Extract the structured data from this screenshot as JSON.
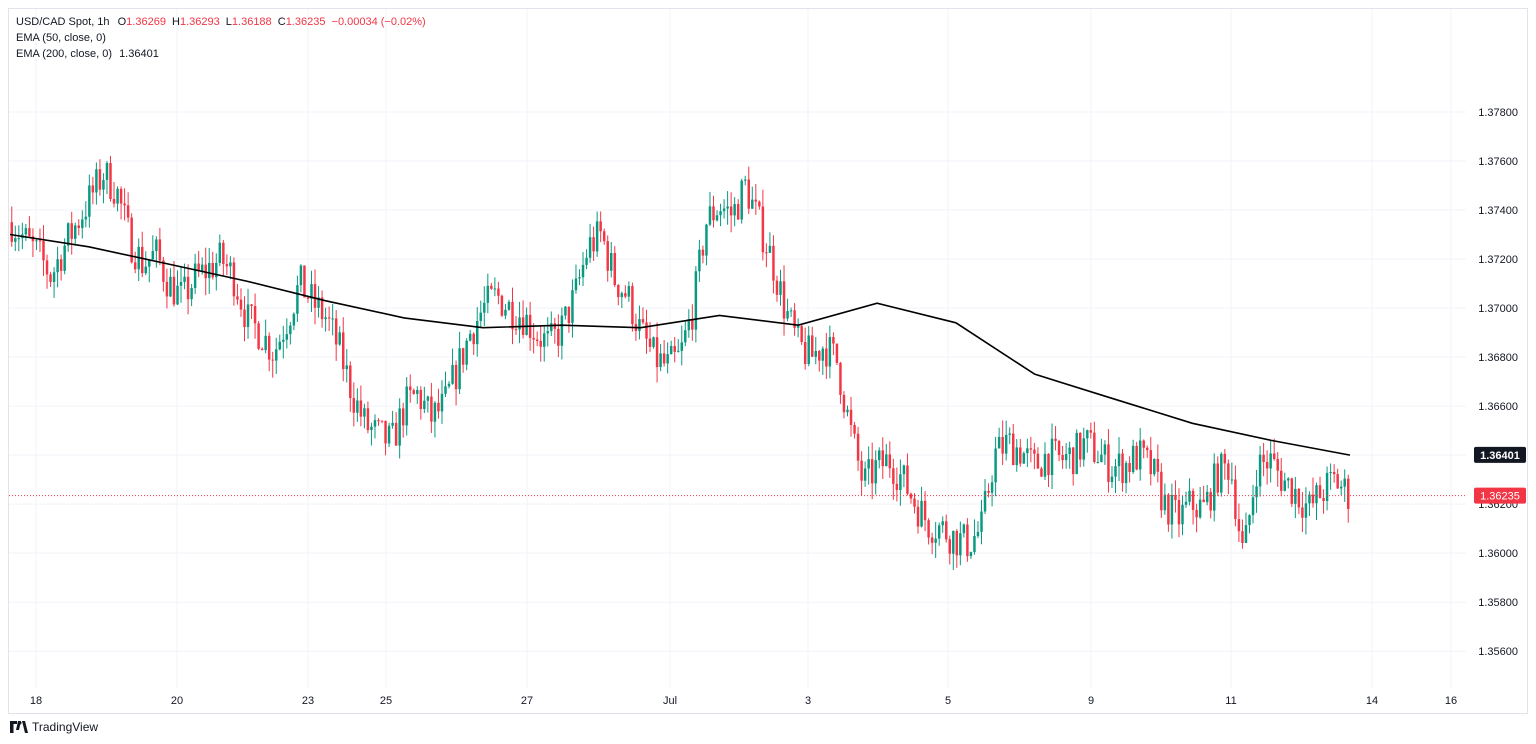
{
  "header": {
    "symbol": "USD/CAD Spot, 1h",
    "o_label": "O",
    "o_value": "1.36269",
    "h_label": "H",
    "h_value": "1.36293",
    "l_label": "L",
    "l_value": "1.36188",
    "c_label": "C",
    "c_value": "1.36235",
    "change": "−0.00034 (−0.02%)",
    "ema50": "EMA (50, close, 0)",
    "ema200": "EMA (200, close, 0)",
    "ema200_value": "1.36401"
  },
  "brand": {
    "name": "TradingView"
  },
  "colors": {
    "up": "#089981",
    "down": "#f23645",
    "ema": "#000000",
    "grid": "#f0f3fa",
    "price_line": "#f23645"
  },
  "chart_data": {
    "type": "candlestick",
    "timeframe": "1h",
    "x_ticks": [
      "18",
      "20",
      "23",
      "25",
      "27",
      "Jul",
      "3",
      "5",
      "9",
      "11",
      "14",
      "16"
    ],
    "y_ticks": [
      "1.35600",
      "1.35800",
      "1.36000",
      "1.36200",
      "1.36400",
      "1.36600",
      "1.36800",
      "1.37000",
      "1.37200",
      "1.37400",
      "1.37600",
      "1.37800"
    ],
    "ylim": [
      1.3545,
      1.3822
    ],
    "last_price": "1.36235",
    "ema200_label": "1.36401",
    "close_path": [
      [
        "18",
        1.3735
      ],
      [
        "18",
        1.3728
      ],
      [
        "18",
        1.3722
      ],
      [
        "18",
        1.3713
      ],
      [
        "18",
        1.3725
      ],
      [
        "18",
        1.3735
      ],
      [
        "18",
        1.3745
      ],
      [
        "18",
        1.3755
      ],
      [
        "18",
        1.3748
      ],
      [
        "18",
        1.3728
      ],
      [
        "20",
        1.3718
      ],
      [
        "20",
        1.3722
      ],
      [
        "20",
        1.371
      ],
      [
        "20",
        1.3704
      ],
      [
        "20",
        1.3712
      ],
      [
        "20",
        1.3716
      ],
      [
        "20",
        1.372
      ],
      [
        "20",
        1.3712
      ],
      [
        "20",
        1.3695
      ],
      [
        "20",
        1.369
      ],
      [
        "23",
        1.3682
      ],
      [
        "23",
        1.3695
      ],
      [
        "23",
        1.371
      ],
      [
        "23",
        1.3702
      ],
      [
        "23",
        1.3696
      ],
      [
        "23",
        1.3683
      ],
      [
        "23",
        1.3665
      ],
      [
        "23",
        1.3652
      ],
      [
        "23",
        1.3648
      ],
      [
        "25",
        1.3645
      ],
      [
        "25",
        1.366
      ],
      [
        "25",
        1.3665
      ],
      [
        "25",
        1.3655
      ],
      [
        "25",
        1.366
      ],
      [
        "25",
        1.3675
      ],
      [
        "25",
        1.369
      ],
      [
        "25",
        1.37
      ],
      [
        "25",
        1.3705
      ],
      [
        "25",
        1.37
      ],
      [
        "27",
        1.3697
      ],
      [
        "27",
        1.369
      ],
      [
        "27",
        1.3685
      ],
      [
        "27",
        1.3692
      ],
      [
        "27",
        1.3705
      ],
      [
        "27",
        1.3725
      ],
      [
        "27",
        1.373
      ],
      [
        "27",
        1.3712
      ],
      [
        "27",
        1.3705
      ],
      [
        "27",
        1.369
      ],
      [
        "Jul",
        1.368
      ],
      [
        "Jul",
        1.3676
      ],
      [
        "Jul",
        1.368
      ],
      [
        "Jul",
        1.37
      ],
      [
        "Jul",
        1.3735
      ],
      [
        "Jul",
        1.3742
      ],
      [
        "Jul",
        1.3738
      ],
      [
        "Jul",
        1.375
      ],
      [
        "Jul",
        1.3735
      ],
      [
        "Jul",
        1.372
      ],
      [
        "Jul",
        1.37
      ],
      [
        "3",
        1.3685
      ],
      [
        "3",
        1.368
      ],
      [
        "3",
        1.3685
      ],
      [
        "3",
        1.3678
      ],
      [
        "3",
        1.365
      ],
      [
        "3",
        1.3628
      ],
      [
        "3",
        1.3635
      ],
      [
        "3",
        1.3638
      ],
      [
        "3",
        1.363
      ],
      [
        "3",
        1.362
      ],
      [
        "3",
        1.3612
      ],
      [
        "3",
        1.361
      ],
      [
        "5",
        1.3606
      ],
      [
        "5",
        1.3604
      ],
      [
        "5",
        1.361
      ],
      [
        "5",
        1.364
      ],
      [
        "5",
        1.3645
      ],
      [
        "5",
        1.3642
      ],
      [
        "5",
        1.3635
      ],
      [
        "5",
        1.364
      ],
      [
        "9",
        1.3638
      ],
      [
        "9",
        1.364
      ],
      [
        "9",
        1.3645
      ],
      [
        "9",
        1.364
      ],
      [
        "9",
        1.3635
      ],
      [
        "9",
        1.3636
      ],
      [
        "9",
        1.364
      ],
      [
        "9",
        1.3634
      ],
      [
        "11",
        1.362
      ],
      [
        "11",
        1.3614
      ],
      [
        "11",
        1.362
      ],
      [
        "11",
        1.3618
      ],
      [
        "11",
        1.3632
      ],
      [
        "11",
        1.3636
      ],
      [
        "11",
        1.3598
      ],
      [
        "11",
        1.3635
      ],
      [
        "11",
        1.3638
      ],
      [
        "11",
        1.363
      ],
      [
        "11",
        1.3625
      ],
      [
        "11",
        1.3618
      ],
      [
        "11",
        1.3625
      ],
      [
        "11",
        1.363
      ],
      [
        "11",
        1.3624
      ]
    ],
    "ema200_series": [
      1.373,
      1.3725,
      1.3718,
      1.3711,
      1.3703,
      1.3696,
      1.3692,
      1.3693,
      1.3692,
      1.3697,
      1.3693,
      1.3702,
      1.3694,
      1.3673,
      1.3663,
      1.3653,
      1.3646,
      1.364
    ]
  }
}
